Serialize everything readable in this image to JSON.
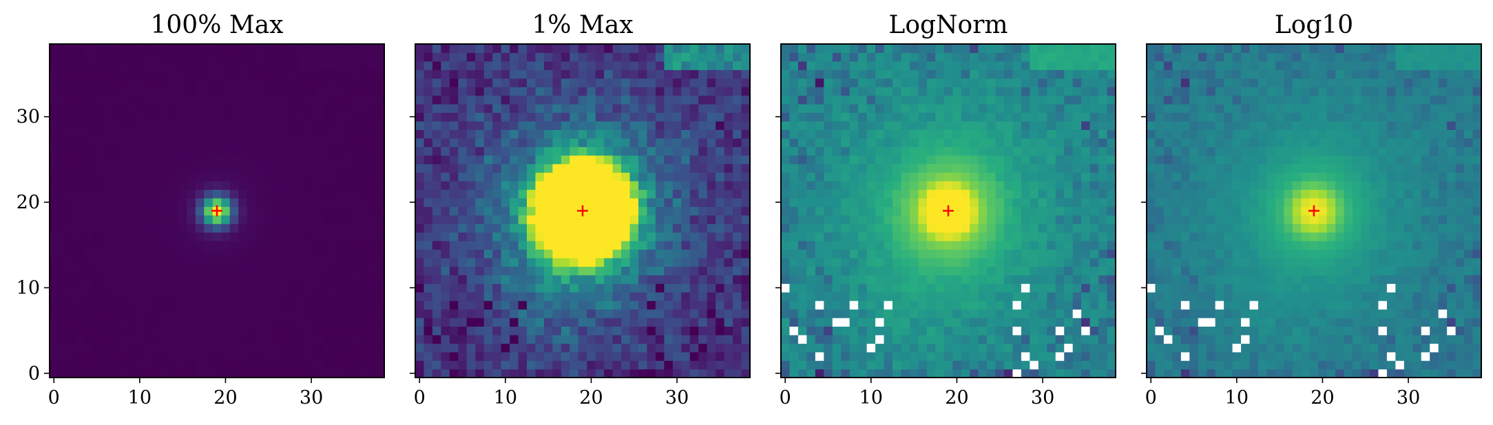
{
  "figure": {
    "subplot_count": 4,
    "shared_y_axis": true
  },
  "chart_data": [
    {
      "type": "heatmap",
      "title": "100% Max",
      "xlabel": "",
      "ylabel": "",
      "xlim": [
        -0.5,
        38.5
      ],
      "ylim": [
        -0.5,
        38.5
      ],
      "xticks": [
        0,
        10,
        20,
        30
      ],
      "yticks": [
        0,
        10,
        20,
        30
      ],
      "ytick_labels_visible": true,
      "colormap": "viridis",
      "marker": {
        "x": 19,
        "y": 19,
        "symbol": "+",
        "color": "#ff0000"
      },
      "grid": false
    },
    {
      "type": "heatmap",
      "title": "1% Max",
      "xlabel": "",
      "ylabel": "",
      "xlim": [
        -0.5,
        38.5
      ],
      "ylim": [
        -0.5,
        38.5
      ],
      "xticks": [
        0,
        10,
        20,
        30
      ],
      "yticks": [
        0,
        10,
        20,
        30
      ],
      "ytick_labels_visible": false,
      "colormap": "viridis",
      "marker": {
        "x": 19,
        "y": 19,
        "symbol": "+",
        "color": "#ff0000"
      },
      "grid": false
    },
    {
      "type": "heatmap",
      "title": "LogNorm",
      "xlabel": "",
      "ylabel": "",
      "xlim": [
        -0.5,
        38.5
      ],
      "ylim": [
        -0.5,
        38.5
      ],
      "xticks": [
        0,
        10,
        20,
        30
      ],
      "yticks": [
        0,
        10,
        20,
        30
      ],
      "ytick_labels_visible": false,
      "colormap": "viridis",
      "marker": {
        "x": 19,
        "y": 19,
        "symbol": "+",
        "color": "#ff0000"
      },
      "grid": false
    },
    {
      "type": "heatmap",
      "title": "Log10",
      "xlabel": "",
      "ylabel": "",
      "xlim": [
        -0.5,
        38.5
      ],
      "ylim": [
        -0.5,
        38.5
      ],
      "xticks": [
        0,
        10,
        20,
        30
      ],
      "yticks": [
        0,
        10,
        20,
        30
      ],
      "ytick_labels_visible": false,
      "colormap": "viridis",
      "marker": {
        "x": 19,
        "y": 19,
        "symbol": "+",
        "color": "#ff0000"
      },
      "grid": false
    }
  ]
}
